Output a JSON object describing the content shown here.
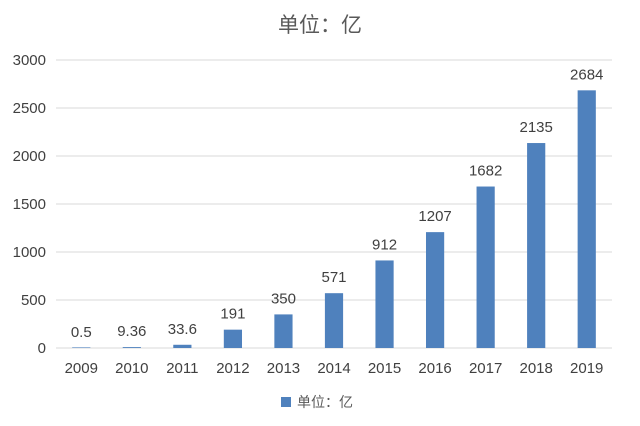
{
  "chart_data": {
    "type": "bar",
    "title": "单位：亿",
    "categories": [
      "2009",
      "2010",
      "2011",
      "2012",
      "2013",
      "2014",
      "2015",
      "2016",
      "2017",
      "2018",
      "2019"
    ],
    "series": [
      {
        "name": "单位：亿",
        "values": [
          0.5,
          9.36,
          33.6,
          191,
          350,
          571,
          912,
          1207,
          1682,
          2135,
          2684
        ],
        "data_labels": [
          "0.5",
          "9.36",
          "33.6",
          "191",
          "350",
          "571",
          "912",
          "1207",
          "1682",
          "2135",
          "2684"
        ],
        "color": "#4f81bd"
      }
    ],
    "ylim": [
      0,
      3000
    ],
    "yticks": [
      0,
      500,
      1000,
      1500,
      2000,
      2500,
      3000
    ],
    "ytick_labels": [
      "0",
      "500",
      "1000",
      "1500",
      "2000",
      "2500",
      "3000"
    ],
    "xlabel": "",
    "ylabel": "",
    "grid": "horizontal",
    "legend_position": "bottom"
  },
  "colors": {
    "bar": "#4f81bd",
    "grid": "#d9d9d9",
    "text": "#404040"
  }
}
